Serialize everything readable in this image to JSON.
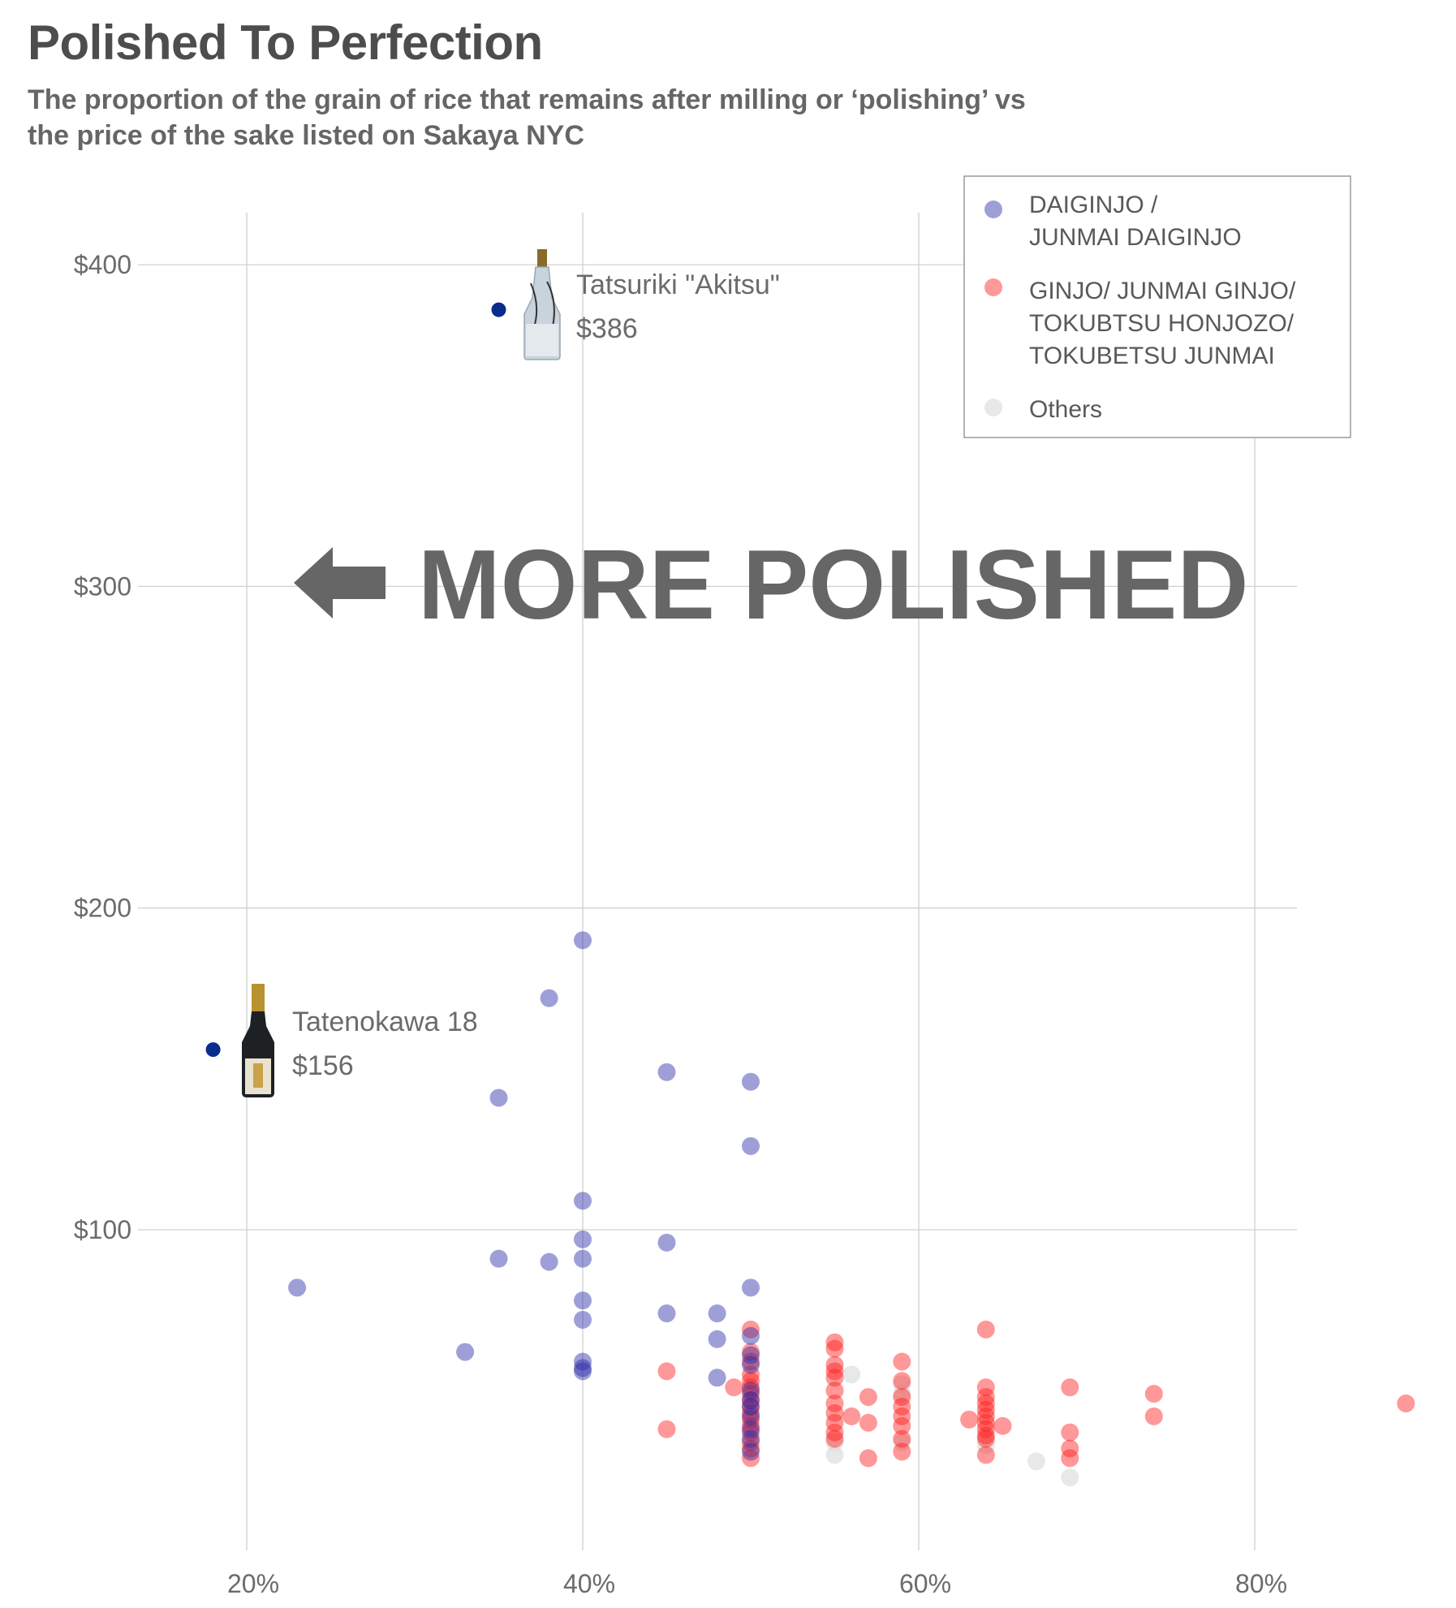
{
  "header": {
    "title": "Polished To Perfection",
    "subtitle_line1": "The proportion of the grain of rice that remains after milling or ‘polishing’ vs",
    "subtitle_line2": "the price of the sake listed on Sakaya NYC"
  },
  "chart_data": {
    "type": "scatter",
    "title": "Polished To Perfection",
    "subtitle": "The proportion of the grain of rice that remains after milling or ‘polishing’ vs the price of the sake listed on Sakaya NYC",
    "xlabel": "",
    "ylabel": "",
    "xlim": [
      13,
      91
    ],
    "ylim": [
      10,
      418
    ],
    "x_ticks": [
      20,
      40,
      60,
      80
    ],
    "x_tick_labels": [
      "20%",
      "40%",
      "60%",
      "80%"
    ],
    "y_ticks": [
      100,
      200,
      300,
      400
    ],
    "y_tick_labels": [
      "$100",
      "$200",
      "$300",
      "$400"
    ],
    "grid": true,
    "legend_position": "top-right",
    "annotation": "MORE POLISHED",
    "labeled_points": [
      {
        "name": "Tatsuriki \"Akitsu\"",
        "price_label": "$386",
        "x": 35,
        "y": 386,
        "color": "#0a2c8c"
      },
      {
        "name": "Tatenokawa 18",
        "price_label": "$156",
        "x": 18,
        "y": 156,
        "color": "#0a2c8c"
      }
    ],
    "series": [
      {
        "name_lines": [
          "DAIGINJO /",
          "JUNMAI DAIGINJO"
        ],
        "color": "#2b2ba8",
        "points": [
          [
            40,
            190
          ],
          [
            38,
            172
          ],
          [
            35,
            141
          ],
          [
            45,
            149
          ],
          [
            50,
            146
          ],
          [
            50,
            126
          ],
          [
            40,
            109
          ],
          [
            40,
            97
          ],
          [
            45,
            96
          ],
          [
            35,
            91
          ],
          [
            38,
            90
          ],
          [
            40,
            91
          ],
          [
            23,
            82
          ],
          [
            50,
            82
          ],
          [
            40,
            78
          ],
          [
            40,
            72
          ],
          [
            45,
            74
          ],
          [
            48,
            74
          ],
          [
            48,
            66
          ],
          [
            50,
            67
          ],
          [
            33,
            62
          ],
          [
            40,
            59
          ],
          [
            40,
            57
          ],
          [
            40,
            56
          ],
          [
            48,
            54
          ],
          [
            50,
            61
          ],
          [
            50,
            58
          ],
          [
            50,
            50
          ],
          [
            50,
            47
          ],
          [
            50,
            45
          ],
          [
            50,
            42
          ],
          [
            50,
            38
          ],
          [
            50,
            35
          ],
          [
            50,
            31
          ]
        ]
      },
      {
        "name_lines": [
          "GINJO/ JUNMAI GINJO/",
          "TOKUBTSU HONJOZO/",
          "TOKUBETSU JUNMAI"
        ],
        "color": "#ff1a1a",
        "points": [
          [
            50,
            69
          ],
          [
            50,
            62
          ],
          [
            50,
            59
          ],
          [
            50,
            55
          ],
          [
            50,
            53
          ],
          [
            50,
            51
          ],
          [
            50,
            49
          ],
          [
            50,
            47
          ],
          [
            50,
            45
          ],
          [
            50,
            43
          ],
          [
            50,
            41
          ],
          [
            50,
            39
          ],
          [
            50,
            37
          ],
          [
            50,
            34
          ],
          [
            50,
            32
          ],
          [
            50,
            29
          ],
          [
            49,
            51
          ],
          [
            45,
            56
          ],
          [
            45,
            38
          ],
          [
            55,
            65
          ],
          [
            55,
            63
          ],
          [
            55,
            58
          ],
          [
            55,
            56
          ],
          [
            55,
            54
          ],
          [
            55,
            50
          ],
          [
            55,
            46
          ],
          [
            55,
            43
          ],
          [
            55,
            40
          ],
          [
            55,
            37
          ],
          [
            55,
            35
          ],
          [
            56,
            42
          ],
          [
            57,
            48
          ],
          [
            57,
            40
          ],
          [
            57,
            29
          ],
          [
            59,
            59
          ],
          [
            59,
            53
          ],
          [
            59,
            48
          ],
          [
            59,
            45
          ],
          [
            59,
            42
          ],
          [
            59,
            39
          ],
          [
            59,
            35
          ],
          [
            59,
            31
          ],
          [
            63,
            41
          ],
          [
            64,
            69
          ],
          [
            64,
            51
          ],
          [
            64,
            48
          ],
          [
            64,
            46
          ],
          [
            64,
            44
          ],
          [
            64,
            42
          ],
          [
            64,
            40
          ],
          [
            64,
            38
          ],
          [
            64,
            36
          ],
          [
            64,
            35
          ],
          [
            64,
            30
          ],
          [
            65,
            39
          ],
          [
            69,
            51
          ],
          [
            69,
            37
          ],
          [
            69,
            32
          ],
          [
            69,
            29
          ],
          [
            74,
            49
          ],
          [
            74,
            42
          ],
          [
            89,
            46
          ]
        ]
      },
      {
        "name_lines": [
          "Others"
        ],
        "color": "#d9d9d9",
        "points": [
          [
            56,
            55
          ],
          [
            59,
            52
          ],
          [
            59,
            49
          ],
          [
            59,
            34
          ],
          [
            55,
            34
          ],
          [
            55,
            30
          ],
          [
            64,
            33
          ],
          [
            67,
            28
          ],
          [
            69,
            23
          ]
        ]
      }
    ]
  },
  "annotations": {
    "akitsu_name": "Tatsuriki \"Akitsu\"",
    "akitsu_price": "$386",
    "tatenokawa_name": "Tatenokawa 18",
    "tatenokawa_price": "$156",
    "big_label": "MORE POLISHED"
  },
  "legend": {
    "daiginjo_line1": "DAIGINJO /",
    "daiginjo_line2": "JUNMAI DAIGINJO",
    "ginjo_line1": "GINJO/ JUNMAI GINJO/",
    "ginjo_line2": "TOKUBTSU HONJOZO/",
    "ginjo_line3": "TOKUBETSU JUNMAI",
    "others": "Others"
  }
}
